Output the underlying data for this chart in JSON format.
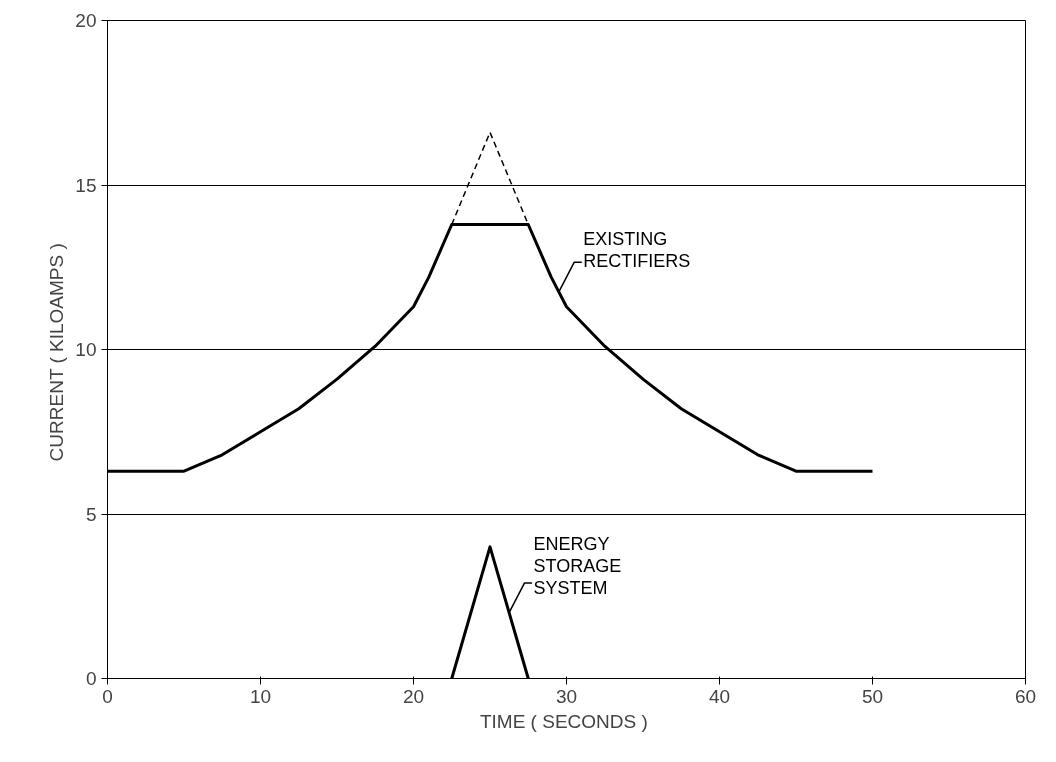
{
  "chart_data": {
    "type": "line",
    "xlabel": "TIME  ( SECONDS )",
    "ylabel": "CURRENT  ( KILOAMPS )",
    "xlim": [
      0,
      60
    ],
    "ylim": [
      0,
      20
    ],
    "xticks": [
      0,
      10,
      20,
      30,
      40,
      50,
      60
    ],
    "yticks": [
      0,
      5,
      10,
      15,
      20
    ],
    "grid": "y",
    "marker": "none",
    "series": [
      {
        "name": "EXISTING\nRECTIFIERS",
        "color": "#000000",
        "line_style": "solid",
        "x": [
          0,
          5,
          7.5,
          10,
          12.5,
          15,
          17.5,
          20,
          21,
          22.5,
          27.5,
          29,
          30,
          32.5,
          35,
          37.5,
          40,
          42.5,
          45,
          50
        ],
        "values": [
          6.3,
          6.3,
          6.8,
          7.5,
          8.2,
          9.1,
          10.1,
          11.3,
          12.2,
          13.8,
          13.8,
          12.2,
          11.3,
          10.1,
          9.1,
          8.2,
          7.5,
          6.8,
          6.3,
          6.3
        ]
      },
      {
        "color": "#000000",
        "line_style": "dashed",
        "x": [
          22.5,
          25,
          27.5
        ],
        "values": [
          13.8,
          16.6,
          13.8
        ]
      },
      {
        "name": "ENERGY\nSTORAGE\nSYSTEM",
        "color": "#000000",
        "line_style": "solid",
        "x": [
          22.5,
          25,
          27.5
        ],
        "values": [
          0,
          4,
          0
        ]
      }
    ]
  }
}
